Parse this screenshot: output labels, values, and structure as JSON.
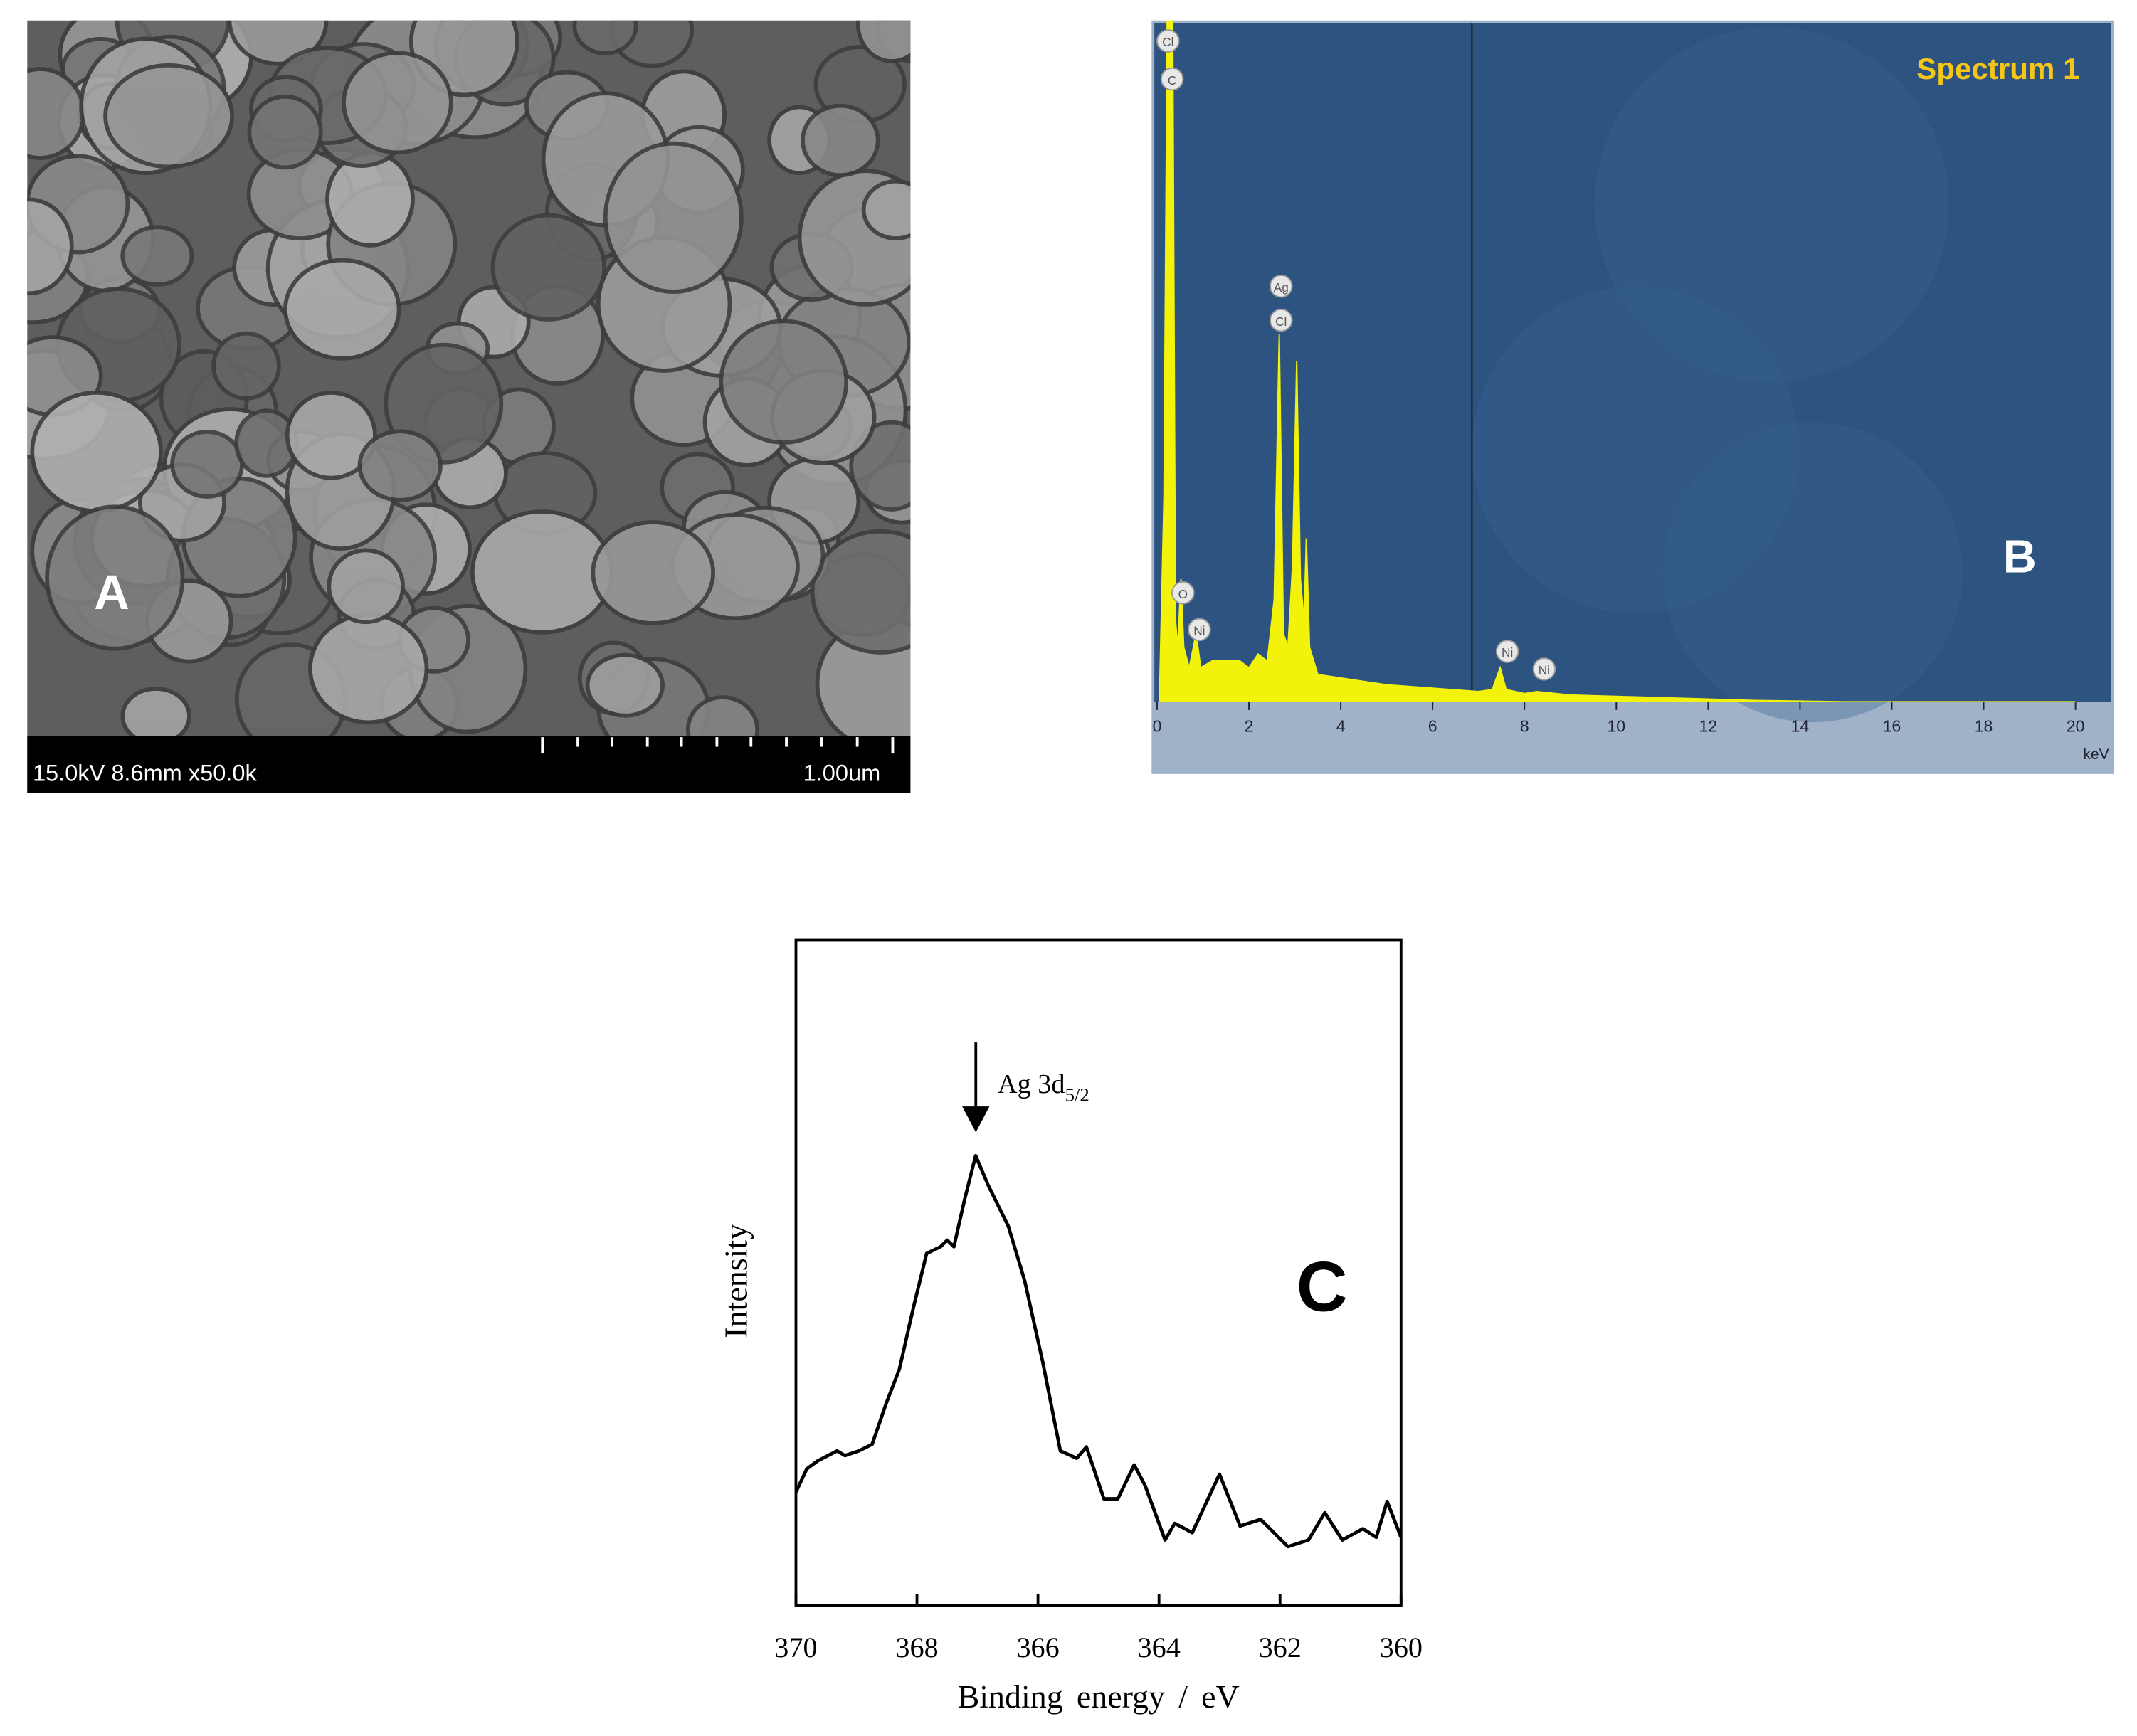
{
  "panel_a": {
    "label": "A",
    "info": "15.0kV 8.6mm x50.0k",
    "scale": "1.00um"
  },
  "chart_data": [
    {
      "type": "area",
      "title": "Spectrum 1",
      "panel_label": "B",
      "x_unit": "keV",
      "peak_labels": [
        "Cl",
        "C",
        "Ag",
        "Cl",
        "O",
        "Ni",
        "Ni",
        "Ni"
      ],
      "xlim": [
        0,
        20.3
      ],
      "xticks": [
        0,
        2,
        4,
        6,
        8,
        10,
        12,
        14,
        16,
        18,
        20
      ],
      "ylim": [
        0,
        100
      ],
      "series": [
        {
          "color": "#f2f20a",
          "x": [
            0.05,
            0.15,
            0.22,
            0.28,
            0.34,
            0.4,
            0.45,
            0.52,
            0.58,
            0.7,
            0.85,
            0.95,
            1.2,
            1.5,
            1.8,
            2.0,
            2.2,
            2.4,
            2.55,
            2.66,
            2.75,
            2.85,
            2.95,
            3.04,
            3.12,
            3.2,
            3.25,
            3.32,
            3.5,
            4.0,
            5.0,
            6.0,
            7.0,
            7.3,
            7.47,
            7.6,
            8.0,
            8.26,
            9,
            10,
            11,
            12,
            13,
            14,
            15,
            20
          ],
          "values": [
            0,
            30,
            100,
            100,
            100,
            12,
            8,
            18,
            8,
            5,
            10,
            5,
            6,
            6,
            6,
            5,
            7,
            6,
            15,
            54,
            10,
            8,
            20,
            50,
            18,
            12,
            24,
            8,
            4,
            3.5,
            2.5,
            2,
            1.5,
            1.8,
            5,
            1.8,
            1.2,
            1.5,
            1,
            0.8,
            0.6,
            0.4,
            0.2,
            0.1,
            0,
            0
          ]
        }
      ]
    },
    {
      "type": "line",
      "panel_label": "C",
      "x_label": "Binding energy / eV",
      "y_label": "Intensity",
      "annotation": {
        "text": "Ag 3d",
        "subscript": "5/2"
      },
      "xlim": [
        370,
        360
      ],
      "xticks": [
        370,
        368,
        366,
        364,
        362,
        360
      ],
      "ylim": [
        0,
        100
      ],
      "series": [
        {
          "color": "#000000",
          "x": [
            370.0,
            369.82,
            369.64,
            369.32,
            369.19,
            368.96,
            368.74,
            368.51,
            368.29,
            368.06,
            367.84,
            367.61,
            367.5,
            367.39,
            367.21,
            367.03,
            366.82,
            366.49,
            366.22,
            365.92,
            365.63,
            365.36,
            365.2,
            364.91,
            364.68,
            364.41,
            364.23,
            363.9,
            363.74,
            363.45,
            363.0,
            362.66,
            362.32,
            361.87,
            361.53,
            361.26,
            360.97,
            360.63,
            360.41,
            360.23,
            360.0
          ],
          "values": [
            17.0,
            20.5,
            21.7,
            23.2,
            22.5,
            23.2,
            24.2,
            30.3,
            35.5,
            44.7,
            52.9,
            53.9,
            54.9,
            53.9,
            61.1,
            67.6,
            63.1,
            57.0,
            48.8,
            36.5,
            23.2,
            22.1,
            23.8,
            16.0,
            16.0,
            21.1,
            18.0,
            9.8,
            12.3,
            10.9,
            19.7,
            11.9,
            12.9,
            8.8,
            9.8,
            13.9,
            9.8,
            11.5,
            10.2,
            15.6,
            10.2
          ]
        }
      ]
    }
  ]
}
